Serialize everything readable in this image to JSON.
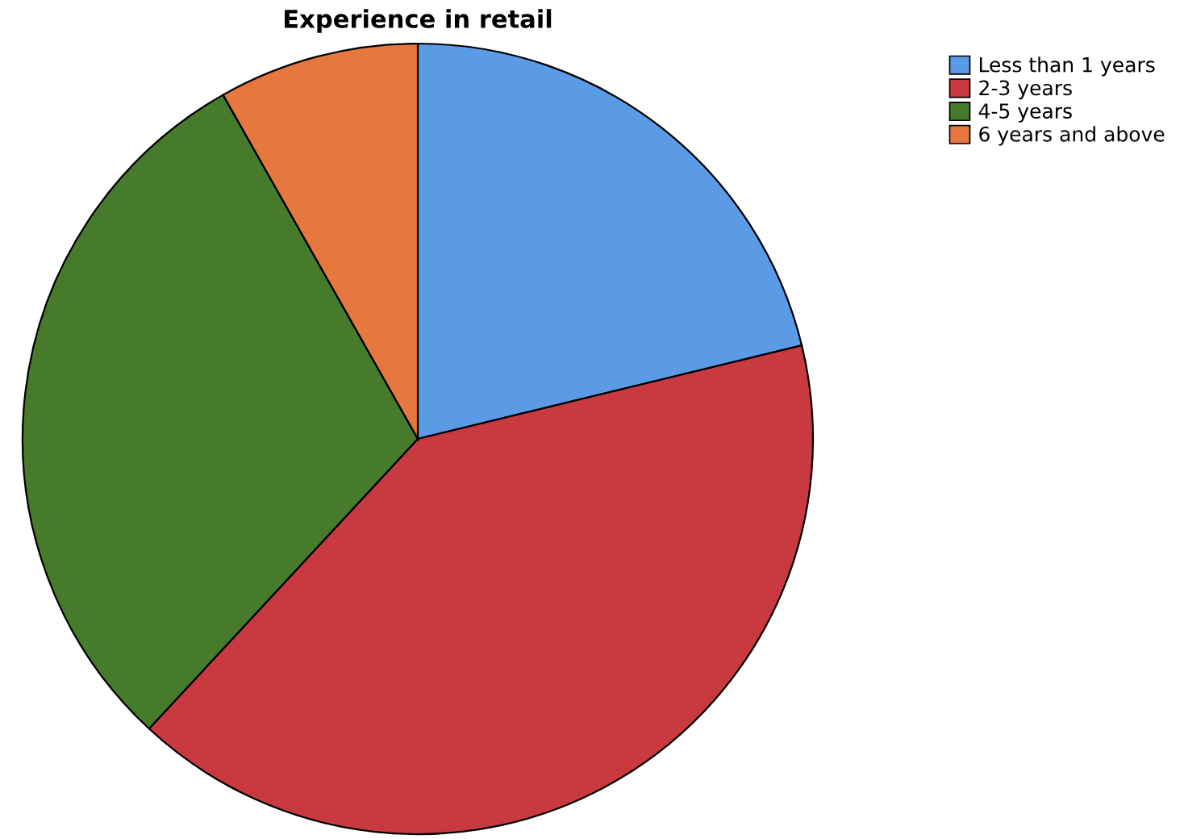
{
  "chart_data": {
    "type": "pie",
    "title": "Experience in retail",
    "categories": [
      "Less than 1 years",
      "2-3 years",
      "4-5 years",
      "6 years and above"
    ],
    "values": [
      21.2,
      40.7,
      29.9,
      8.2
    ],
    "colors": [
      "#5b9be6",
      "#c93a40",
      "#467b2b",
      "#e5773f"
    ],
    "legend": "top right"
  }
}
